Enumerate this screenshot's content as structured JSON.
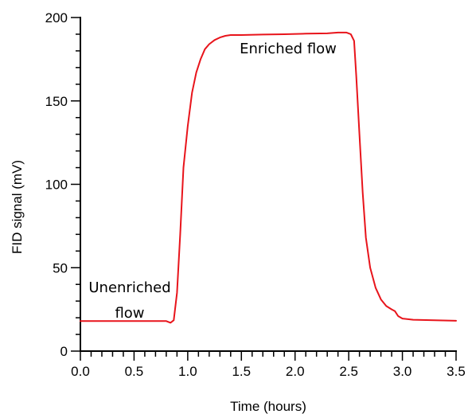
{
  "chart_data": {
    "type": "line",
    "title": "",
    "xlabel": "Time (hours)",
    "ylabel": "FID signal (mV)",
    "xlim": [
      0,
      3.5
    ],
    "ylim": [
      0,
      200
    ],
    "x_ticks": [
      0.0,
      0.5,
      1.0,
      1.5,
      2.0,
      2.5,
      3.0,
      3.5
    ],
    "x_tick_labels": [
      "0.0",
      "0.5",
      "1.0",
      "1.5",
      "2.0",
      "2.5",
      "3.0",
      "3.5"
    ],
    "y_ticks": [
      0,
      50,
      100,
      150,
      200
    ],
    "y_tick_labels": [
      "0",
      "50",
      "100",
      "150",
      "200"
    ],
    "grid": false,
    "series": [
      {
        "color": "#e8141b",
        "x": [
          0.0,
          0.2,
          0.4,
          0.6,
          0.8,
          0.84,
          0.87,
          0.9,
          0.93,
          0.96,
          1.0,
          1.04,
          1.08,
          1.12,
          1.16,
          1.2,
          1.25,
          1.3,
          1.35,
          1.4,
          1.5,
          1.7,
          1.9,
          2.1,
          2.3,
          2.4,
          2.45,
          2.48,
          2.5,
          2.52,
          2.55,
          2.57,
          2.6,
          2.63,
          2.66,
          2.7,
          2.75,
          2.8,
          2.85,
          2.9,
          2.93,
          2.96,
          3.0,
          3.1,
          3.3,
          3.5
        ],
        "y": [
          18,
          18,
          18,
          18,
          18,
          17,
          18.5,
          35,
          70,
          110,
          135,
          155,
          167,
          175,
          181,
          184,
          186.5,
          188,
          189,
          189.5,
          189.5,
          189.8,
          190,
          190.3,
          190.5,
          191,
          191,
          191,
          190.5,
          190,
          186,
          165,
          130,
          95,
          68,
          50,
          38,
          31,
          27,
          25,
          24,
          21,
          19.5,
          18.8,
          18.5,
          18.2
        ]
      }
    ],
    "annotations": [
      {
        "text": "Enriched flow"
      },
      {
        "text": "Unenriched"
      },
      {
        "text": "flow"
      }
    ]
  }
}
